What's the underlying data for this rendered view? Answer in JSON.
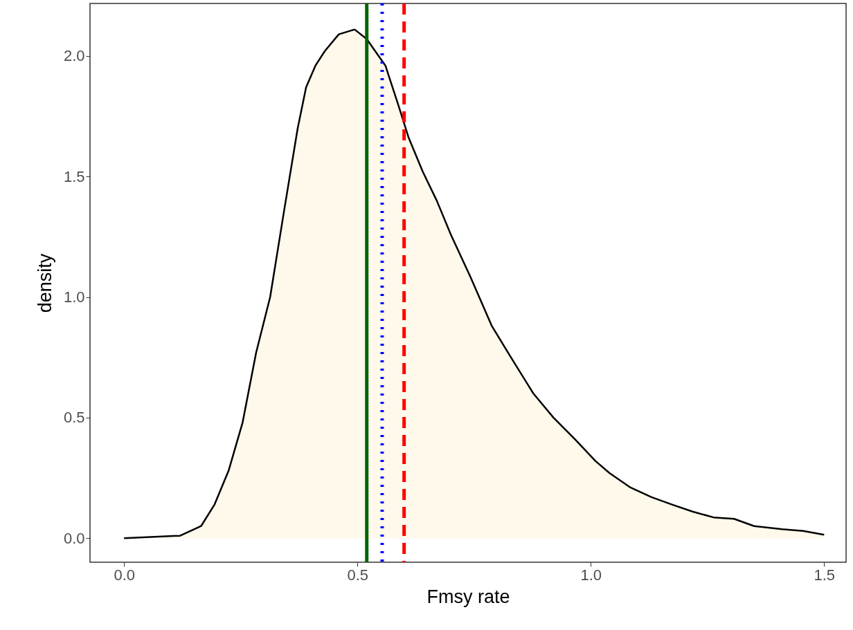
{
  "chart_data": {
    "type": "area",
    "xlabel": "Fmsy rate",
    "ylabel": "density",
    "xlim": [
      -0.073,
      1.547
    ],
    "ylim": [
      -0.1,
      2.218
    ],
    "xticks": [
      {
        "value": 0,
        "label": "0.0"
      },
      {
        "value": 0.5,
        "label": "0.5"
      },
      {
        "value": 1,
        "label": "1.0"
      },
      {
        "value": 1.5,
        "label": "1.5"
      }
    ],
    "yticks": [
      {
        "value": 0,
        "label": "0.0"
      },
      {
        "value": 0.5,
        "label": "0.5"
      },
      {
        "value": 1,
        "label": "1.0"
      },
      {
        "value": 1.5,
        "label": "1.5"
      },
      {
        "value": 2,
        "label": "2.0"
      }
    ],
    "grid": false,
    "series": [
      {
        "color": "#fdf7e3",
        "x": [
          0,
          0.12,
          0.165,
          0.194,
          0.224,
          0.254,
          0.283,
          0.313,
          0.343,
          0.372,
          0.39,
          0.41,
          0.43,
          0.46,
          0.494,
          0.52,
          0.56,
          0.587,
          0.61,
          0.64,
          0.67,
          0.7,
          0.743,
          0.788,
          0.832,
          0.877,
          0.92,
          0.966,
          1.01,
          1.04,
          1.085,
          1.13,
          1.173,
          1.218,
          1.263,
          1.307,
          1.35,
          1.41,
          1.455,
          1.5
        ],
        "values": [
          0,
          0.01,
          0.05,
          0.14,
          0.28,
          0.48,
          0.77,
          1.0,
          1.36,
          1.7,
          1.87,
          1.96,
          2.02,
          2.09,
          2.11,
          2.07,
          1.96,
          1.8,
          1.66,
          1.52,
          1.4,
          1.26,
          1.08,
          0.88,
          0.74,
          0.6,
          0.5,
          0.41,
          0.32,
          0.27,
          0.21,
          0.17,
          0.14,
          0.11,
          0.086,
          0.08,
          0.05,
          0.037,
          0.03,
          0.014
        ]
      }
    ],
    "ref_lines": [
      {
        "axis": "x",
        "value": 0.52,
        "color": "#006400",
        "line_style": "solid"
      },
      {
        "axis": "x",
        "value": 0.553,
        "color": "#0000ff",
        "line_style": "dotted"
      },
      {
        "axis": "x",
        "value": 0.6,
        "color": "#ff0000",
        "line_style": "dashed"
      }
    ]
  }
}
